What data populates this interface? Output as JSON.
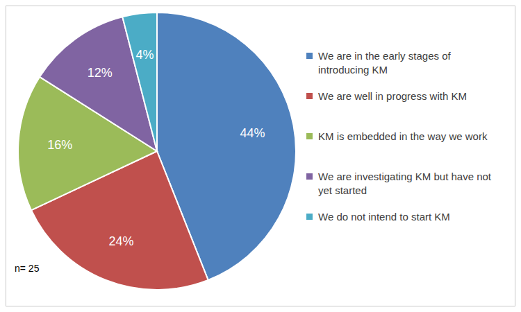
{
  "chart_data": {
    "type": "pie",
    "categories": [
      "We are in the early stages of introducing KM",
      "We are well in progress with KM",
      "KM is embedded in the way we work",
      "We are investigating KM but have not yet started",
      "We do not intend to start KM"
    ],
    "values": [
      44,
      24,
      16,
      12,
      4
    ],
    "value_labels": [
      "44%",
      "24%",
      "16%",
      "12%",
      "4%"
    ],
    "colors": [
      "#4F81BD",
      "#C0504D",
      "#9BBB59",
      "#8064A2",
      "#4BACC6"
    ],
    "data_labels": true,
    "legend": "right",
    "annotations": [
      "n= 25"
    ]
  }
}
